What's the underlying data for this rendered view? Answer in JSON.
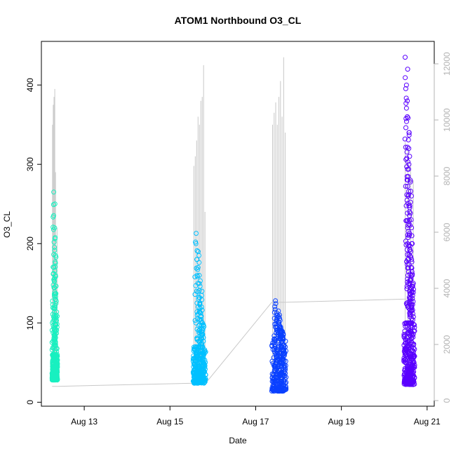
{
  "chart_data": {
    "type": "scatter",
    "title": "ATOM1 Northbound O3_CL",
    "xlabel": "Date",
    "ylabel": "O3_CL",
    "x_ticks": [
      "Aug 13",
      "Aug 15",
      "Aug 17",
      "Aug 19",
      "Aug 21"
    ],
    "y_ticks": [
      0,
      100,
      200,
      300,
      400
    ],
    "y2_ticks": [
      0,
      2000,
      4000,
      6000,
      8000,
      10000,
      12000
    ],
    "xlim": [
      "2023-08-12T00:00",
      "2023-08-21T04:00"
    ],
    "ylim": [
      -5,
      455
    ],
    "y2lim": [
      -200,
      12800
    ],
    "colors": {
      "series_line": "#c8c8c8",
      "axis": "#000000",
      "right_axis": "#b3b3b3"
    },
    "series": [
      {
        "color": "#19f0c0",
        "x_range": [
          "2023-08-12T06:00",
          "2023-08-12T09:00"
        ],
        "o3_base": [
          28,
          60
        ],
        "o3_peaks": [
          100,
          170,
          265,
          250,
          220,
          185,
          160,
          130,
          110
        ],
        "line_peaks": [
          350,
          375,
          385,
          395,
          290,
          180,
          220
        ],
        "line_base": 20
      },
      {
        "color": "#00c0ff",
        "x_range": [
          "2023-08-15T13:00",
          "2023-08-15T20:00"
        ],
        "o3_base": [
          24,
          70
        ],
        "o3_peaks": [
          213,
          200,
          185,
          160,
          140,
          120,
          100
        ],
        "line_peaks": [
          298,
          310,
          330,
          360,
          350,
          380,
          385,
          425,
          240
        ],
        "line_base": 24
      },
      {
        "color": "#0a40ff",
        "x_range": [
          "2023-08-17T09:00",
          "2023-08-17T17:00"
        ],
        "o3_base": [
          14,
          80
        ],
        "o3_peaks": [
          128,
          115,
          110,
          95,
          90
        ],
        "line_peaks": [
          350,
          365,
          378,
          350,
          385,
          405,
          360,
          435,
          340
        ],
        "line_base": 126
      },
      {
        "color": "#5a00ff",
        "x_range": [
          "2023-08-20T11:00",
          "2023-08-20T17:00"
        ],
        "o3_base": [
          22,
          100
        ],
        "o3_peaks": [
          435,
          420,
          400,
          380,
          360,
          340,
          310,
          280,
          260,
          230,
          200,
          170,
          150
        ],
        "line_peaks": [
          328,
          320,
          300,
          280
        ],
        "line_base": 130
      }
    ]
  }
}
